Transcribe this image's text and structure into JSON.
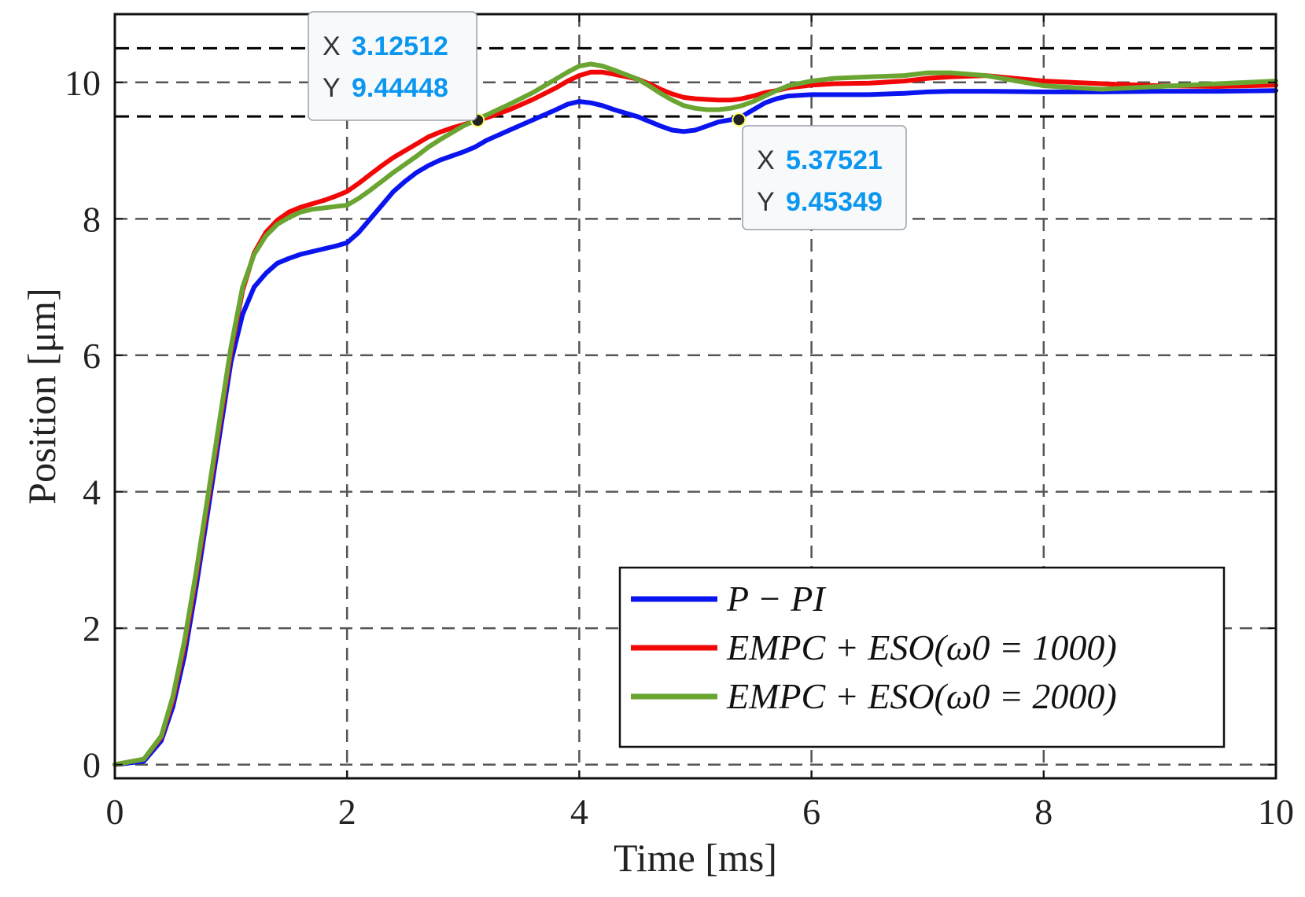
{
  "chart_data": {
    "type": "line",
    "title": "",
    "xlabel": "Time [ms]",
    "ylabel": "Position [μm]",
    "xlim": [
      0,
      10
    ],
    "ylim": [
      -0.2,
      11
    ],
    "xticks": [
      0,
      2,
      4,
      6,
      8,
      10
    ],
    "yticks": [
      0,
      2,
      4,
      6,
      8,
      10
    ],
    "grid": true,
    "legend_position": "bottom-right",
    "reference_lines": [
      {
        "y": 10.5,
        "style": "dashed",
        "color": "#000000"
      },
      {
        "y": 9.5,
        "style": "dashed",
        "color": "#000000"
      }
    ],
    "series": [
      {
        "name": "P − PI",
        "color": "#0a14ee",
        "x": [
          0,
          0.25,
          0.4,
          0.5,
          0.6,
          0.7,
          0.8,
          0.9,
          1.0,
          1.1,
          1.2,
          1.3,
          1.4,
          1.5,
          1.6,
          1.7,
          1.8,
          1.9,
          2.0,
          2.1,
          2.2,
          2.3,
          2.4,
          2.5,
          2.6,
          2.7,
          2.8,
          2.9,
          3.0,
          3.1,
          3.2,
          3.4,
          3.6,
          3.8,
          3.9,
          4.0,
          4.1,
          4.2,
          4.3,
          4.5,
          4.7,
          4.8,
          4.9,
          5.0,
          5.1,
          5.2,
          5.3,
          5.4,
          5.5,
          5.6,
          5.7,
          5.8,
          6.0,
          6.2,
          6.5,
          6.8,
          7.0,
          7.2,
          7.5,
          8.0,
          8.5,
          9.0,
          9.5,
          10.0
        ],
        "values": [
          0,
          0.05,
          0.35,
          0.85,
          1.6,
          2.6,
          3.7,
          4.8,
          5.9,
          6.6,
          7.0,
          7.2,
          7.35,
          7.42,
          7.48,
          7.52,
          7.56,
          7.6,
          7.65,
          7.8,
          8.0,
          8.2,
          8.4,
          8.55,
          8.68,
          8.78,
          8.86,
          8.92,
          8.98,
          9.05,
          9.15,
          9.3,
          9.45,
          9.6,
          9.68,
          9.72,
          9.7,
          9.66,
          9.6,
          9.5,
          9.36,
          9.3,
          9.28,
          9.3,
          9.36,
          9.42,
          9.45,
          9.5,
          9.6,
          9.7,
          9.76,
          9.8,
          9.82,
          9.82,
          9.82,
          9.84,
          9.86,
          9.87,
          9.87,
          9.86,
          9.86,
          9.87,
          9.87,
          9.88
        ]
      },
      {
        "name": "EMPC + ESO(ω0 = 1000)",
        "color": "#f20707",
        "x": [
          0,
          0.25,
          0.4,
          0.5,
          0.6,
          0.7,
          0.8,
          0.9,
          1.0,
          1.1,
          1.2,
          1.3,
          1.4,
          1.5,
          1.6,
          1.7,
          1.8,
          1.9,
          2.0,
          2.1,
          2.2,
          2.3,
          2.4,
          2.5,
          2.6,
          2.7,
          2.8,
          2.9,
          3.0,
          3.1,
          3.2,
          3.4,
          3.6,
          3.8,
          3.9,
          4.0,
          4.1,
          4.2,
          4.3,
          4.5,
          4.6,
          4.7,
          4.8,
          4.9,
          5.0,
          5.1,
          5.2,
          5.3,
          5.4,
          5.5,
          5.6,
          5.7,
          5.8,
          6.0,
          6.2,
          6.5,
          6.8,
          7.0,
          7.2,
          7.5,
          8.0,
          8.5,
          9.0,
          9.5,
          10.0
        ],
        "values": [
          0,
          0.08,
          0.4,
          0.95,
          1.75,
          2.75,
          3.85,
          4.95,
          6.05,
          6.95,
          7.5,
          7.8,
          7.98,
          8.1,
          8.17,
          8.22,
          8.27,
          8.33,
          8.4,
          8.52,
          8.65,
          8.78,
          8.9,
          9.0,
          9.1,
          9.2,
          9.27,
          9.33,
          9.38,
          9.43,
          9.48,
          9.6,
          9.75,
          9.92,
          10.02,
          10.1,
          10.15,
          10.15,
          10.12,
          10.05,
          9.98,
          9.9,
          9.83,
          9.78,
          9.76,
          9.75,
          9.74,
          9.74,
          9.76,
          9.8,
          9.85,
          9.88,
          9.92,
          9.96,
          9.98,
          9.99,
          10.02,
          10.06,
          10.08,
          10.1,
          10.02,
          9.98,
          9.95,
          9.94,
          9.96
        ]
      },
      {
        "name": "EMPC + ESO(ω0 = 2000)",
        "color": "#6aa532",
        "x": [
          0,
          0.25,
          0.4,
          0.5,
          0.6,
          0.7,
          0.8,
          0.9,
          1.0,
          1.1,
          1.2,
          1.3,
          1.4,
          1.5,
          1.6,
          1.7,
          1.8,
          1.9,
          2.0,
          2.1,
          2.2,
          2.3,
          2.4,
          2.5,
          2.6,
          2.7,
          2.8,
          2.9,
          3.0,
          3.1,
          3.2,
          3.4,
          3.6,
          3.8,
          3.9,
          4.0,
          4.1,
          4.2,
          4.3,
          4.5,
          4.6,
          4.7,
          4.8,
          4.9,
          5.0,
          5.1,
          5.2,
          5.3,
          5.4,
          5.5,
          5.6,
          5.7,
          5.8,
          6.0,
          6.2,
          6.5,
          6.8,
          7.0,
          7.2,
          7.5,
          8.0,
          8.5,
          9.0,
          9.5,
          10.0
        ],
        "values": [
          0,
          0.08,
          0.42,
          1.0,
          1.82,
          2.82,
          3.92,
          5.02,
          6.12,
          7.0,
          7.48,
          7.75,
          7.92,
          8.02,
          8.1,
          8.14,
          8.16,
          8.18,
          8.2,
          8.3,
          8.42,
          8.55,
          8.68,
          8.8,
          8.92,
          9.05,
          9.16,
          9.26,
          9.36,
          9.44,
          9.52,
          9.68,
          9.85,
          10.05,
          10.15,
          10.24,
          10.27,
          10.24,
          10.18,
          10.05,
          9.95,
          9.84,
          9.74,
          9.66,
          9.62,
          9.6,
          9.6,
          9.62,
          9.66,
          9.72,
          9.8,
          9.88,
          9.95,
          10.02,
          10.06,
          10.08,
          10.1,
          10.14,
          10.14,
          10.1,
          9.95,
          9.9,
          9.94,
          9.98,
          10.02
        ]
      }
    ],
    "datatips": [
      {
        "x_key": "X",
        "x_value": "3.12512",
        "y_key": "Y",
        "y_value": "9.44448",
        "x": 3.12512,
        "y": 9.44448
      },
      {
        "x_key": "X",
        "x_value": "5.37521",
        "y_key": "Y",
        "y_value": "9.45349",
        "x": 5.37521,
        "y": 9.45349
      }
    ]
  }
}
